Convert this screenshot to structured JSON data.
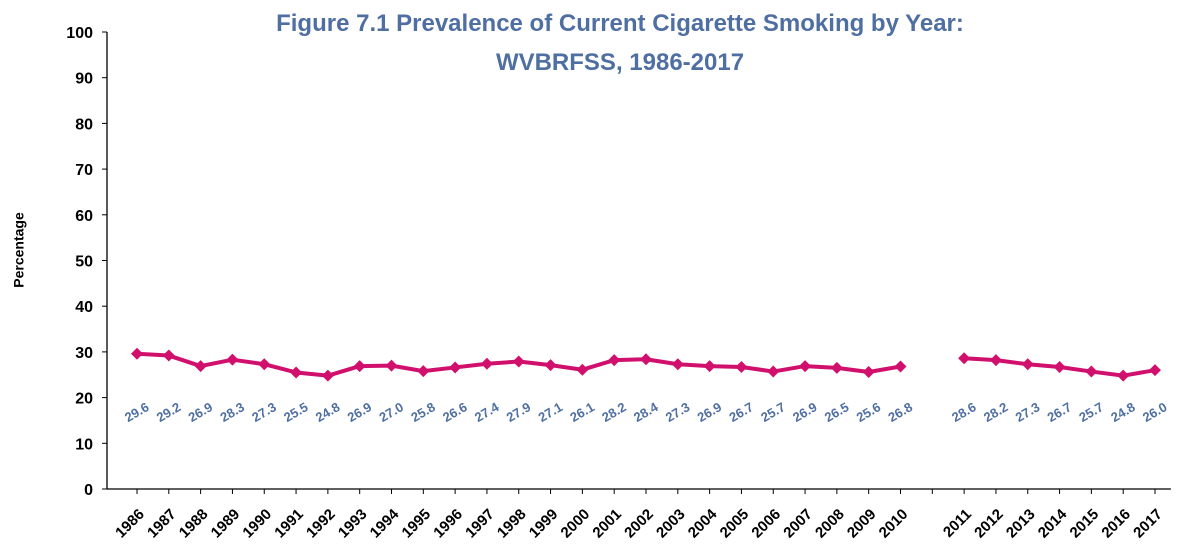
{
  "chart_data": {
    "type": "line",
    "title": "Figure 7.1  Prevalence of Current Cigarette Smoking by Year:",
    "subtitle": "WVBRFSS, 1986-2017",
    "xlabel": "",
    "ylabel": "Percentage",
    "ylim": [
      0,
      100
    ],
    "yticks": [
      "0",
      "10",
      "20",
      "30",
      "40",
      "50",
      "60",
      "70",
      "80",
      "90",
      "100"
    ],
    "grid": false,
    "legend": "none",
    "line_color": "#d1106e",
    "label_color": "#4f6fa2",
    "segments": [
      {
        "x": [
          "1986",
          "1987",
          "1988",
          "1989",
          "1990",
          "1991",
          "1992",
          "1993",
          "1994",
          "1995",
          "1996",
          "1997",
          "1998",
          "1999",
          "2000",
          "2001",
          "2002",
          "2003",
          "2004",
          "2005",
          "2006",
          "2007",
          "2008",
          "2009",
          "2010"
        ],
        "values": [
          29.6,
          29.2,
          26.9,
          28.3,
          27.3,
          25.5,
          24.8,
          26.9,
          27.0,
          25.8,
          26.6,
          27.4,
          27.9,
          27.1,
          26.1,
          28.2,
          28.4,
          27.3,
          26.9,
          26.7,
          25.7,
          26.9,
          26.5,
          25.6,
          26.8
        ],
        "labels": [
          "29.6",
          "29.2",
          "26.9",
          "28.3",
          "27.3",
          "25.5",
          "24.8",
          "26.9",
          "27.0",
          "25.8",
          "26.6",
          "27.4",
          "27.9",
          "27.1",
          "26.1",
          "28.2",
          "28.4",
          "27.3",
          "26.9",
          "26.7",
          "25.7",
          "26.9",
          "26.5",
          "25.6",
          "26.8"
        ]
      },
      {
        "x": [
          "2011",
          "2012",
          "2013",
          "2014",
          "2015",
          "2016",
          "2017"
        ],
        "values": [
          28.6,
          28.2,
          27.3,
          26.7,
          25.7,
          24.8,
          26.0
        ],
        "labels": [
          "28.6",
          "28.2",
          "27.3",
          "26.7",
          "25.7",
          "24.8",
          "26.0"
        ]
      }
    ]
  }
}
